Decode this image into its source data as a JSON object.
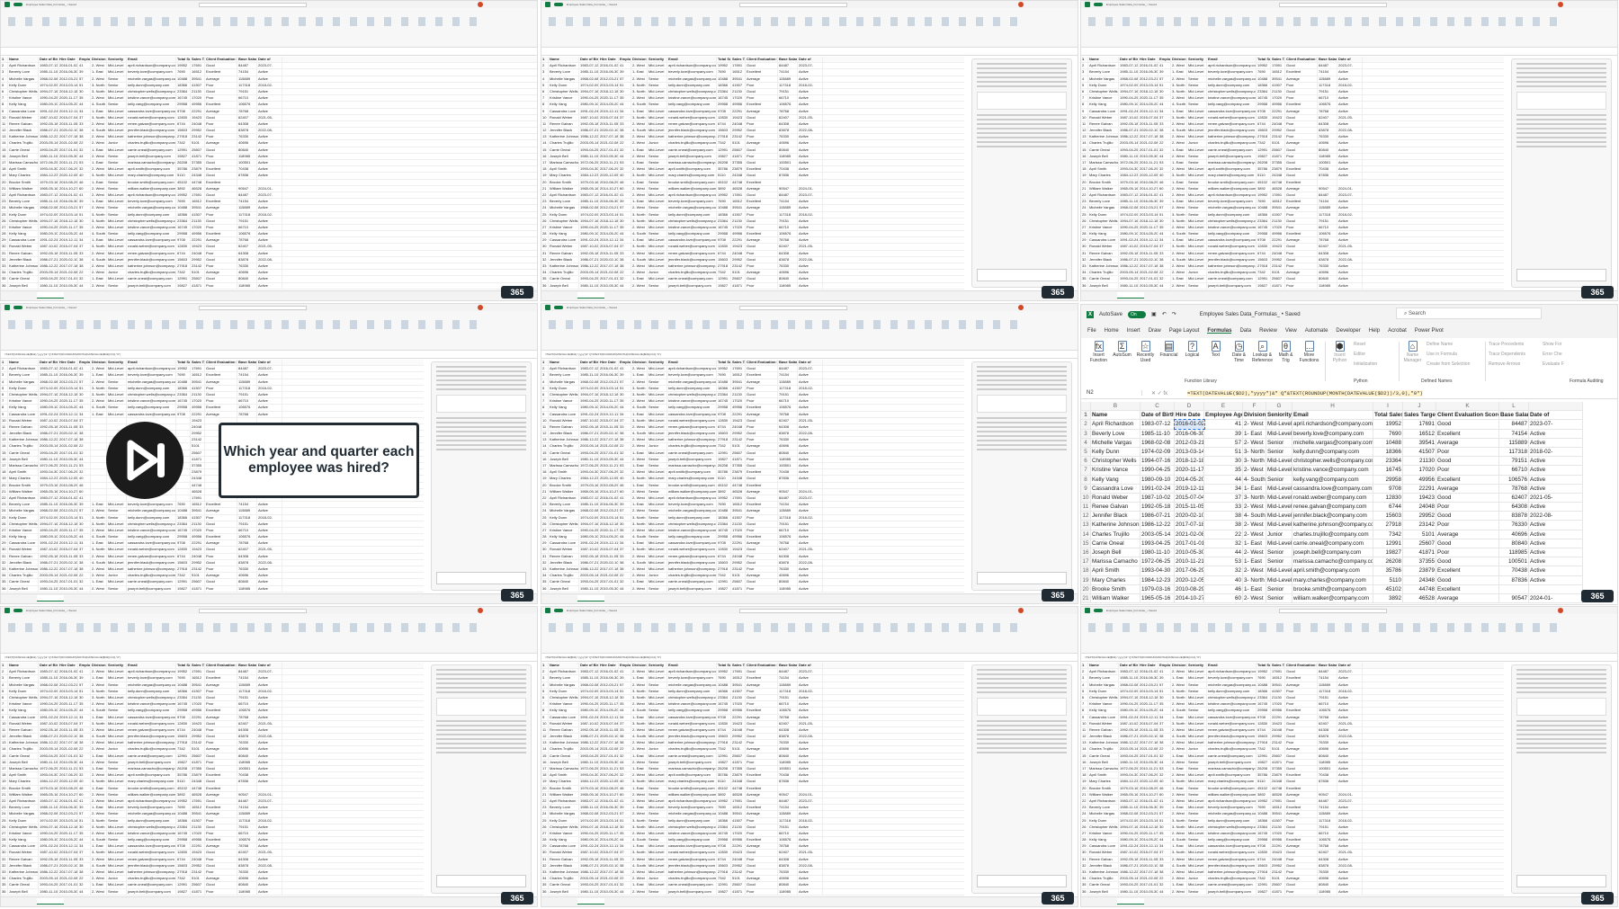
{
  "window": {
    "app_logo": "excel-icon",
    "autosave_label": "AutoSave",
    "autosave_state": "On",
    "file_title": "Employee Sales Data_Formulas_ • Saved",
    "search_placeholder": "Search"
  },
  "menu": [
    "File",
    "Home",
    "Insert",
    "Draw",
    "Page Layout",
    "Formulas",
    "Data",
    "Review",
    "View",
    "Automate",
    "Developer",
    "Help",
    "Acrobat",
    "Power Pivot"
  ],
  "active_menu": "Formulas",
  "ribbon": {
    "function_library": {
      "label": "Function Library",
      "buttons": [
        "Insert Function",
        "AutoSum",
        "Recently Used",
        "Financial",
        "Logical",
        "Text",
        "Date & Time",
        "Lookup & Reference",
        "Math & Trig",
        "More Functions"
      ]
    },
    "python": {
      "label": "Python",
      "buttons": [
        "Insert Python",
        "Reset",
        "Editor",
        "Initialization"
      ]
    },
    "defined_names": {
      "label": "Defined Names",
      "buttons": [
        "Name Manager",
        "Define Name",
        "Use in Formula",
        "Create from Selection"
      ]
    },
    "formula_auditing": {
      "label": "Formula Auditing",
      "buttons": [
        "Trace Precedents",
        "Trace Dependents",
        "Remove Arrows",
        "Show For",
        "Error Che",
        "Evaluate F"
      ]
    }
  },
  "formula_bar": {
    "name_box": "N2",
    "formula": "=TEXT(DATEVALUE($D2),\"yyyy\")&\" Q\"&TEXT(ROUNDUP(MONTH(DATEVALUE($D2))/3,0),\"0\")"
  },
  "sheet": {
    "col_letters": [
      "B",
      "C",
      "D",
      "E",
      "F",
      "G",
      "H",
      "I",
      "J",
      "K",
      "L",
      ""
    ],
    "headers": [
      "Name",
      "Date of Birth",
      "Hire Date",
      "Employee Age",
      "Division",
      "Seniority",
      "Email",
      "Total Sales",
      "Sales Target",
      "Client Evaluation Score",
      "Base Salary",
      "Date of"
    ],
    "rows": [
      [
        "April Richardson",
        "1983-07-12",
        "2016-01-02",
        "41",
        "2- West",
        "Mid-Level",
        "april.richardson@company.com",
        "19952",
        "17691",
        "Good",
        "84487",
        "2023-07-"
      ],
      [
        "Beverly Love",
        "1985-11-10",
        "2016-06-30",
        "39",
        "1- East",
        "Mid-Level",
        "beverly.love@company.com",
        "7690",
        "16512",
        "Excellent",
        "74154",
        "Active"
      ],
      [
        "Michelle Vargas",
        "1968-02-08",
        "2012-03-21",
        "57",
        "2- West",
        "Senior",
        "michelle.vargas@company.com",
        "10488",
        "39541",
        "Average",
        "115889",
        "Active"
      ],
      [
        "Kelly Dunn",
        "1974-02-09",
        "2013-03-14",
        "51",
        "3- North",
        "Senior",
        "kelly.dunn@company.com",
        "18366",
        "41507",
        "Poor",
        "117318",
        "2018-02-"
      ],
      [
        "Christopher Wells",
        "1994-07-16",
        "2018-12-18",
        "30",
        "3- North",
        "Mid-Level",
        "christopher.wells@company.com",
        "23364",
        "21130",
        "Good",
        "79151",
        "Active"
      ],
      [
        "Kristine Vance",
        "1990-04-25",
        "2020-11-17",
        "35",
        "2- West",
        "Mid-Level",
        "kristine.vance@company.com",
        "16745",
        "17020",
        "Poor",
        "66710",
        "Active"
      ],
      [
        "Kelly Vang",
        "1980-09-10",
        "2014-05-20",
        "44",
        "4- South",
        "Senior",
        "kelly.vang@company.com",
        "29958",
        "49956",
        "Excellent",
        "106576",
        "Active"
      ],
      [
        "Cassandra Love",
        "1991-02-24",
        "2019-12-11",
        "34",
        "1- East",
        "Mid-Level",
        "cassandra.love@company.com",
        "9708",
        "22291",
        "Average",
        "78768",
        "Active"
      ],
      [
        "Ronald Weber",
        "1987-10-02",
        "2015-07-04",
        "37",
        "3- North",
        "Mid-Level",
        "ronald.weber@company.com",
        "12830",
        "19423",
        "Good",
        "62407",
        "2021-05-"
      ],
      [
        "Renee Galvan",
        "1992-05-18",
        "2015-11-05",
        "33",
        "2- West",
        "Mid-Level",
        "renee.galvan@company.com",
        "6744",
        "24048",
        "Poor",
        "64308",
        "Active"
      ],
      [
        "Jennifer Black",
        "1986-07-21",
        "2020-02-10",
        "38",
        "4- South",
        "Mid-Level",
        "jennifer.black@company.com",
        "15603",
        "29952",
        "Good",
        "83878",
        "2022-08-"
      ],
      [
        "Katherine Johnson",
        "1986-12-22",
        "2017-07-18",
        "38",
        "2- West",
        "Mid-Level",
        "katherine.johnson@company.com",
        "27918",
        "23142",
        "Poor",
        "76330",
        "Active"
      ],
      [
        "Charles Trujillo",
        "2003-05-14",
        "2021-02-08",
        "22",
        "2- West",
        "Junior",
        "charles.trujillo@company.com",
        "7342",
        "5101",
        "Average",
        "40696",
        "Active"
      ],
      [
        "Carrie Oneal",
        "1993-04-25",
        "2017-01-01",
        "32",
        "1- East",
        "Mid-Level",
        "carrie.oneal@company.com",
        "12991",
        "25607",
        "Good",
        "80840",
        "Active"
      ],
      [
        "Joseph Bell",
        "1980-11-10",
        "2010-05-30",
        "44",
        "2- West",
        "Senior",
        "joseph.bell@company.com",
        "19827",
        "41871",
        "Poor",
        "118985",
        "Active"
      ],
      [
        "Marissa Camacho",
        "1972-06-25",
        "2010-11-21",
        "53",
        "1- East",
        "Senior",
        "marissa.camacho@company.com",
        "26208",
        "37355",
        "Good",
        "100501",
        "Active"
      ],
      [
        "April Smith",
        "1993-04-30",
        "2017-06-29",
        "32",
        "2- West",
        "Mid-Level",
        "april.smith@company.com",
        "35786",
        "23879",
        "Excellent",
        "70438",
        "Active"
      ],
      [
        "Mary Charles",
        "1984-12-23",
        "2020-12-05",
        "40",
        "3- North",
        "Mid-Level",
        "mary.charles@company.com",
        "5110",
        "24348",
        "Good",
        "87836",
        "Active"
      ],
      [
        "Brooke Smith",
        "1979-03-16",
        "2010-08-29",
        "46",
        "1- East",
        "Senior",
        "brooke.smith@company.com",
        "45102",
        "44748",
        "Excellent",
        "",
        ""
      ],
      [
        "William Walker",
        "1965-05-16",
        "2014-10-27",
        "60",
        "2- West",
        "Senior",
        "william.walker@company.com",
        "3892",
        "46528",
        "Average",
        "90547",
        "2024-01-"
      ]
    ]
  },
  "overlay": {
    "icon": "skip-next-icon",
    "question": "Which year and quarter each employee was hired?"
  },
  "brand_logo": "365",
  "colors": {
    "excel_green": "#107c41",
    "formula_highlight": "#fff2cc",
    "overlay_dark": "#1f2a33"
  }
}
